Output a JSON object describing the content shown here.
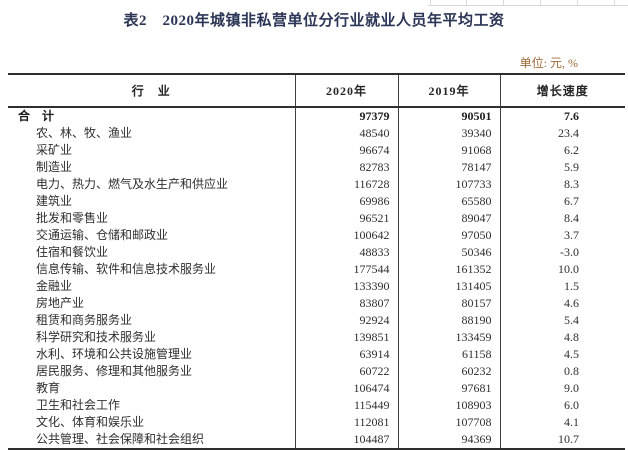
{
  "page": {
    "title": "表2　2020年城镇非私营单位分行业就业人员年平均工资",
    "unit_note": "单位: 元, %"
  },
  "table": {
    "columns": [
      "行　业",
      "2020年",
      "2019年",
      "增长速度"
    ],
    "rows": [
      {
        "industry": "合　计",
        "y2020": "97379",
        "y2019": "90501",
        "growth": "7.6",
        "bold": true,
        "indent": false
      },
      {
        "industry": "农、林、牧、渔业",
        "y2020": "48540",
        "y2019": "39340",
        "growth": "23.4",
        "bold": false,
        "indent": true
      },
      {
        "industry": "采矿业",
        "y2020": "96674",
        "y2019": "91068",
        "growth": "6.2",
        "bold": false,
        "indent": true
      },
      {
        "industry": "制造业",
        "y2020": "82783",
        "y2019": "78147",
        "growth": "5.9",
        "bold": false,
        "indent": true
      },
      {
        "industry": "电力、热力、燃气及水生产和供应业",
        "y2020": "116728",
        "y2019": "107733",
        "growth": "8.3",
        "bold": false,
        "indent": true
      },
      {
        "industry": "建筑业",
        "y2020": "69986",
        "y2019": "65580",
        "growth": "6.7",
        "bold": false,
        "indent": true
      },
      {
        "industry": "批发和零售业",
        "y2020": "96521",
        "y2019": "89047",
        "growth": "8.4",
        "bold": false,
        "indent": true
      },
      {
        "industry": "交通运输、仓储和邮政业",
        "y2020": "100642",
        "y2019": "97050",
        "growth": "3.7",
        "bold": false,
        "indent": true
      },
      {
        "industry": "住宿和餐饮业",
        "y2020": "48833",
        "y2019": "50346",
        "growth": "-3.0",
        "bold": false,
        "indent": true
      },
      {
        "industry": "信息传输、软件和信息技术服务业",
        "y2020": "177544",
        "y2019": "161352",
        "growth": "10.0",
        "bold": false,
        "indent": true
      },
      {
        "industry": "金融业",
        "y2020": "133390",
        "y2019": "131405",
        "growth": "1.5",
        "bold": false,
        "indent": true
      },
      {
        "industry": "房地产业",
        "y2020": "83807",
        "y2019": "80157",
        "growth": "4.6",
        "bold": false,
        "indent": true
      },
      {
        "industry": "租赁和商务服务业",
        "y2020": "92924",
        "y2019": "88190",
        "growth": "5.4",
        "bold": false,
        "indent": true
      },
      {
        "industry": "科学研究和技术服务业",
        "y2020": "139851",
        "y2019": "133459",
        "growth": "4.8",
        "bold": false,
        "indent": true
      },
      {
        "industry": "水利、环境和公共设施管理业",
        "y2020": "63914",
        "y2019": "61158",
        "growth": "4.5",
        "bold": false,
        "indent": true
      },
      {
        "industry": "居民服务、修理和其他服务业",
        "y2020": "60722",
        "y2019": "60232",
        "growth": "0.8",
        "bold": false,
        "indent": true
      },
      {
        "industry": "教育",
        "y2020": "106474",
        "y2019": "97681",
        "growth": "9.0",
        "bold": false,
        "indent": true
      },
      {
        "industry": "卫生和社会工作",
        "y2020": "115449",
        "y2019": "108903",
        "growth": "6.0",
        "bold": false,
        "indent": true
      },
      {
        "industry": "文化、体育和娱乐业",
        "y2020": "112081",
        "y2019": "107708",
        "growth": "4.1",
        "bold": false,
        "indent": true
      },
      {
        "industry": "公共管理、社会保障和社会组织",
        "y2020": "104487",
        "y2019": "94369",
        "growth": "10.7",
        "bold": false,
        "indent": true
      }
    ]
  }
}
